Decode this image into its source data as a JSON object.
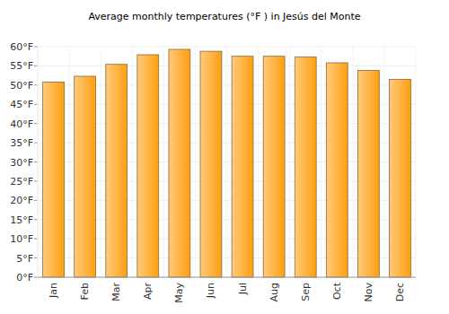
{
  "chart_data": {
    "type": "bar",
    "title": "Average monthly temperatures (°F ) in Jesús del Monte",
    "categories": [
      "Jan",
      "Feb",
      "Mar",
      "Apr",
      "May",
      "Jun",
      "Jul",
      "Aug",
      "Sep",
      "Oct",
      "Nov",
      "Dec"
    ],
    "values": [
      50.8,
      52.3,
      55.4,
      57.9,
      59.3,
      58.8,
      57.5,
      57.5,
      57.3,
      55.8,
      53.8,
      51.5
    ],
    "color": "#ff9f10",
    "ylim": [
      0,
      60
    ],
    "yticks": [
      {
        "value": 0,
        "label": "0°F"
      },
      {
        "value": 5,
        "label": "5°F"
      },
      {
        "value": 10,
        "label": "10°F"
      },
      {
        "value": 15,
        "label": "15°F"
      },
      {
        "value": 20,
        "label": "20°F"
      },
      {
        "value": 25,
        "label": "25°F"
      },
      {
        "value": 30,
        "label": "30°F"
      },
      {
        "value": 35,
        "label": "35°F"
      },
      {
        "value": 40,
        "label": "40°F"
      },
      {
        "value": 45,
        "label": "45°F"
      },
      {
        "value": 50,
        "label": "50°F"
      },
      {
        "value": 55,
        "label": "55°F"
      },
      {
        "value": 60,
        "label": "60°F"
      }
    ],
    "grid": true
  }
}
